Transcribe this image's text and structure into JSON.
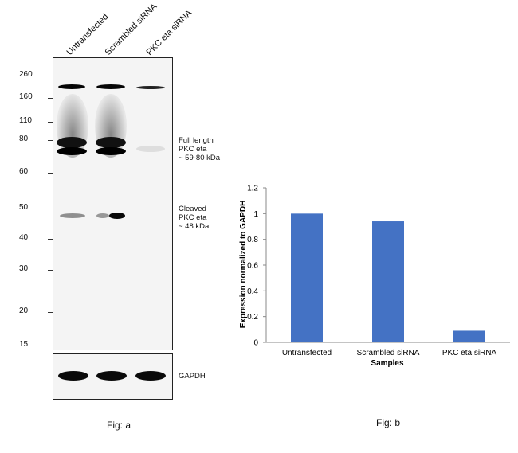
{
  "western_blot": {
    "lanes": [
      "Untransfected",
      "Scrambled siRNA",
      "PKC eta siRNA"
    ],
    "mw_markers": [
      "260",
      "160",
      "110",
      "80",
      "60",
      "50",
      "40",
      "30",
      "20",
      "15"
    ],
    "annotations": {
      "full_length": [
        "Full length",
        "PKC eta",
        "~ 59-80 kDa"
      ],
      "cleaved": [
        "Cleaved",
        "PKC eta",
        "~ 48 kDa"
      ]
    },
    "loading_control": "GAPDH",
    "caption": "Fig: a"
  },
  "chart_data": {
    "type": "bar",
    "categories": [
      "Untransfected",
      "Scrambled siRNA",
      "PKC eta siRNA"
    ],
    "values": [
      1.0,
      0.94,
      0.09
    ],
    "xlabel": "Samples",
    "ylabel": "Expression normalized to GAPDH",
    "ylim": [
      0,
      1.2
    ],
    "yticks": [
      "0",
      "0.2",
      "0.4",
      "0.6",
      "0.8",
      "1",
      "1.2"
    ],
    "bar_color": "#4472c4",
    "grid": false
  },
  "caption_b": "Fig: b"
}
